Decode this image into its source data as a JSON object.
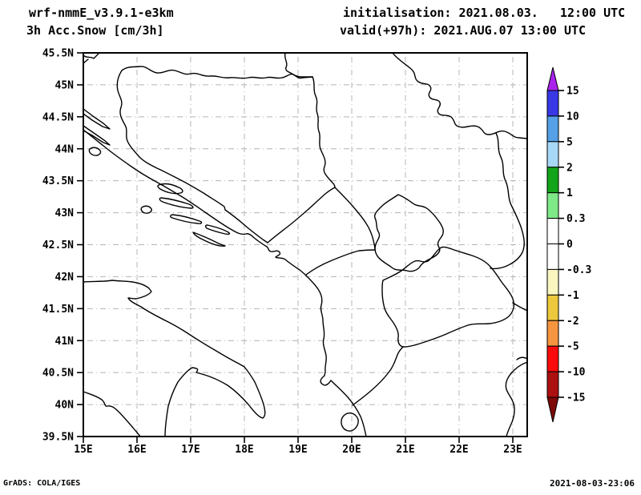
{
  "header": {
    "model": "wrf-nmmE_v3.9.1-e3km",
    "variable": "3h Acc.Snow [cm/3h]",
    "initialisation": "initialisation: 2021.08.03.   12:00 UTC",
    "valid": "valid(+97h): 2021.AUG.07 13:00 UTC"
  },
  "footer": {
    "credit": "GrADS: COLA/IGES",
    "created": "2021-08-03-23:06"
  },
  "map": {
    "lat_labels": [
      "45.5N",
      "45N",
      "44.5N",
      "44N",
      "43.5N",
      "43N",
      "42.5N",
      "42N",
      "41.5N",
      "41N",
      "40.5N",
      "40N",
      "39.5N"
    ],
    "lon_labels": [
      "15E",
      "16E",
      "17E",
      "18E",
      "19E",
      "20E",
      "21E",
      "22E",
      "23E"
    ],
    "grid_color": "#b4b4b4",
    "outline_color": "#000000"
  },
  "colorbar": {
    "labels": [
      "15",
      "10",
      "5",
      "2",
      "1",
      "0.3",
      "0",
      "-0.3",
      "-1",
      "-2",
      "-5",
      "-10",
      "-15"
    ],
    "segment_colors": [
      "#3838e6",
      "#55a0e6",
      "#a8d8f8",
      "#12a41a",
      "#7ee986",
      "#ffffff",
      "#ffffff",
      "#faf6c0",
      "#edc83c",
      "#f6953f",
      "#fa0a0a",
      "#ac1010"
    ],
    "arrow_top_color": "#a822ec",
    "arrow_bottom_color": "#7c0808"
  },
  "chart_data": {
    "type": "filled_contour_map",
    "title": "3h Acc.Snow [cm/3h]",
    "model": "wrf-nmmE_v3.9.1-e3km",
    "init_time": "2021.08.03. 12:00 UTC",
    "valid_time": "2021.AUG.07 13:00 UTC (+97h)",
    "region": "Adriatic / Western Balkans",
    "lon_range": [
      15,
      23.3
    ],
    "lat_range": [
      39.5,
      45.5
    ],
    "x_tick_labels": [
      "15E",
      "16E",
      "17E",
      "18E",
      "19E",
      "20E",
      "21E",
      "22E",
      "23E"
    ],
    "y_tick_labels": [
      "39.5N",
      "40N",
      "40.5N",
      "41N",
      "41.5N",
      "42N",
      "42.5N",
      "43N",
      "43.5N",
      "44N",
      "44.5N",
      "45N",
      "45.5N"
    ],
    "colorbar_levels": [
      15,
      10,
      5,
      2,
      1,
      0.3,
      0,
      -0.3,
      -1,
      -2,
      -5,
      -10,
      -15
    ],
    "field": "uniform zero — no snow accumulation shaded anywhere in the domain (entire map area blank/white)"
  }
}
